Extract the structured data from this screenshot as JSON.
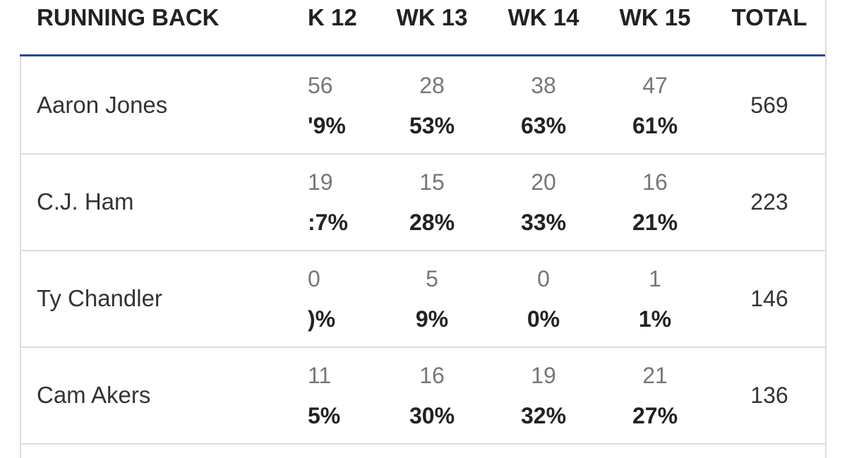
{
  "table": {
    "header": [
      "RUNNING BACK",
      "K 12",
      "WK 13",
      "WK 14",
      "WK 15",
      "TOTAL"
    ],
    "rows": [
      {
        "name": "Aaron Jones",
        "weeks": [
          {
            "count": "56",
            "pct": "'9%"
          },
          {
            "count": "28",
            "pct": "53%"
          },
          {
            "count": "38",
            "pct": "63%"
          },
          {
            "count": "47",
            "pct": "61%"
          }
        ],
        "total": "569"
      },
      {
        "name": "C.J. Ham",
        "weeks": [
          {
            "count": "19",
            "pct": ":7%"
          },
          {
            "count": "15",
            "pct": "28%"
          },
          {
            "count": "20",
            "pct": "33%"
          },
          {
            "count": "16",
            "pct": "21%"
          }
        ],
        "total": "223"
      },
      {
        "name": "Ty Chandler",
        "weeks": [
          {
            "count": "0",
            "pct": ")%"
          },
          {
            "count": "5",
            "pct": "9%"
          },
          {
            "count": "0",
            "pct": "0%"
          },
          {
            "count": "1",
            "pct": "1%"
          }
        ],
        "total": "146"
      },
      {
        "name": "Cam Akers",
        "weeks": [
          {
            "count": "11",
            "pct": "5%"
          },
          {
            "count": "16",
            "pct": "30%"
          },
          {
            "count": "19",
            "pct": "32%"
          },
          {
            "count": "21",
            "pct": "27%"
          }
        ],
        "total": "136"
      }
    ]
  }
}
